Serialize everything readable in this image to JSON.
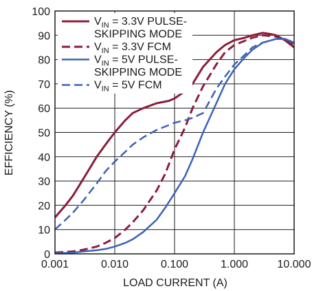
{
  "chart_data": {
    "type": "line",
    "xlabel": "LOAD CURRENT (A)",
    "ylabel": "EFFICIENCY (%)",
    "x_scale": "log",
    "xlim": [
      0.001,
      10
    ],
    "ylim": [
      0,
      100
    ],
    "x_ticks": [
      {
        "value": 0.001,
        "label": "0.001"
      },
      {
        "value": 0.01,
        "label": "0.010"
      },
      {
        "value": 0.1,
        "label": "0.100"
      },
      {
        "value": 1,
        "label": "1.000"
      },
      {
        "value": 10,
        "label": "10.000"
      }
    ],
    "y_ticks": [
      0,
      10,
      20,
      30,
      40,
      50,
      60,
      70,
      80,
      90,
      100
    ],
    "grid": true,
    "legend_position": "top-left",
    "series": [
      {
        "id": "vin33-ps",
        "legend_lines": [
          [
            {
              "t": "V"
            },
            {
              "t": "IN",
              "sub": true
            },
            {
              "t": " = 3.3V PULSE-"
            }
          ],
          [
            {
              "t": "SKIPPING MODE"
            }
          ]
        ],
        "color": "#8c1c3a",
        "dash": "solid",
        "points": [
          [
            0.001,
            15
          ],
          [
            0.0015,
            20
          ],
          [
            0.002,
            24
          ],
          [
            0.003,
            31
          ],
          [
            0.005,
            40
          ],
          [
            0.007,
            45
          ],
          [
            0.01,
            50
          ],
          [
            0.015,
            55
          ],
          [
            0.02,
            58
          ],
          [
            0.03,
            60
          ],
          [
            0.05,
            62
          ],
          [
            0.08,
            63
          ],
          [
            0.1,
            64
          ],
          [
            0.15,
            67
          ],
          [
            0.2,
            70
          ],
          [
            0.3,
            77
          ],
          [
            0.5,
            83
          ],
          [
            0.7,
            86
          ],
          [
            1,
            88
          ],
          [
            1.5,
            89
          ],
          [
            2,
            90
          ],
          [
            3,
            91
          ],
          [
            4,
            90.5
          ],
          [
            5,
            90
          ],
          [
            7,
            88
          ],
          [
            10,
            85
          ]
        ]
      },
      {
        "id": "vin33-fcm",
        "legend_lines": [
          [
            {
              "t": "V"
            },
            {
              "t": "IN",
              "sub": true
            },
            {
              "t": " = 3.3V FCM"
            }
          ]
        ],
        "color": "#8c1c3a",
        "dash": "dashed",
        "points": [
          [
            0.001,
            0.5
          ],
          [
            0.002,
            1
          ],
          [
            0.003,
            1.7
          ],
          [
            0.005,
            3
          ],
          [
            0.007,
            4.5
          ],
          [
            0.01,
            6.5
          ],
          [
            0.015,
            10
          ],
          [
            0.02,
            13
          ],
          [
            0.03,
            18
          ],
          [
            0.05,
            26
          ],
          [
            0.07,
            33
          ],
          [
            0.1,
            43
          ],
          [
            0.15,
            52
          ],
          [
            0.2,
            60
          ],
          [
            0.3,
            69
          ],
          [
            0.5,
            78
          ],
          [
            0.7,
            83
          ],
          [
            1,
            86
          ],
          [
            2,
            89
          ],
          [
            3,
            90
          ],
          [
            5,
            89.5
          ],
          [
            7,
            88
          ],
          [
            10,
            86
          ]
        ]
      },
      {
        "id": "vin5-ps",
        "legend_lines": [
          [
            {
              "t": "V"
            },
            {
              "t": "IN",
              "sub": true
            },
            {
              "t": " = 5V PULSE-"
            }
          ],
          [
            {
              "t": "SKIPPING MODE"
            }
          ]
        ],
        "color": "#3a62b5",
        "dash": "solid",
        "points": [
          [
            0.001,
            0.2
          ],
          [
            0.002,
            0.5
          ],
          [
            0.003,
            1
          ],
          [
            0.005,
            1.5
          ],
          [
            0.007,
            2
          ],
          [
            0.01,
            3
          ],
          [
            0.015,
            4.5
          ],
          [
            0.02,
            6
          ],
          [
            0.03,
            9
          ],
          [
            0.05,
            14
          ],
          [
            0.07,
            19
          ],
          [
            0.1,
            25
          ],
          [
            0.15,
            32
          ],
          [
            0.2,
            39
          ],
          [
            0.3,
            50
          ],
          [
            0.5,
            62
          ],
          [
            0.7,
            70
          ],
          [
            1,
            76
          ],
          [
            1.5,
            81
          ],
          [
            2,
            84
          ],
          [
            3,
            87
          ],
          [
            5,
            88.5
          ],
          [
            7,
            88.5
          ],
          [
            10,
            87
          ]
        ]
      },
      {
        "id": "vin5-fcm",
        "legend_lines": [
          [
            {
              "t": "V"
            },
            {
              "t": "IN",
              "sub": true
            },
            {
              "t": " = 5V FCM"
            }
          ]
        ],
        "color": "#3a62b5",
        "dash": "dashed",
        "points": [
          [
            0.001,
            10
          ],
          [
            0.0015,
            14
          ],
          [
            0.002,
            17
          ],
          [
            0.003,
            22
          ],
          [
            0.005,
            29
          ],
          [
            0.007,
            34
          ],
          [
            0.01,
            38
          ],
          [
            0.015,
            42
          ],
          [
            0.02,
            45
          ],
          [
            0.03,
            48
          ],
          [
            0.05,
            51
          ],
          [
            0.08,
            53
          ],
          [
            0.1,
            54
          ],
          [
            0.15,
            55
          ],
          [
            0.2,
            56
          ],
          [
            0.3,
            58
          ],
          [
            0.5,
            68
          ],
          [
            0.7,
            73
          ],
          [
            1,
            78
          ],
          [
            1.5,
            82
          ],
          [
            2,
            85
          ],
          [
            3,
            87
          ],
          [
            5,
            88.5
          ],
          [
            7,
            88.5
          ],
          [
            10,
            87
          ]
        ]
      }
    ]
  }
}
